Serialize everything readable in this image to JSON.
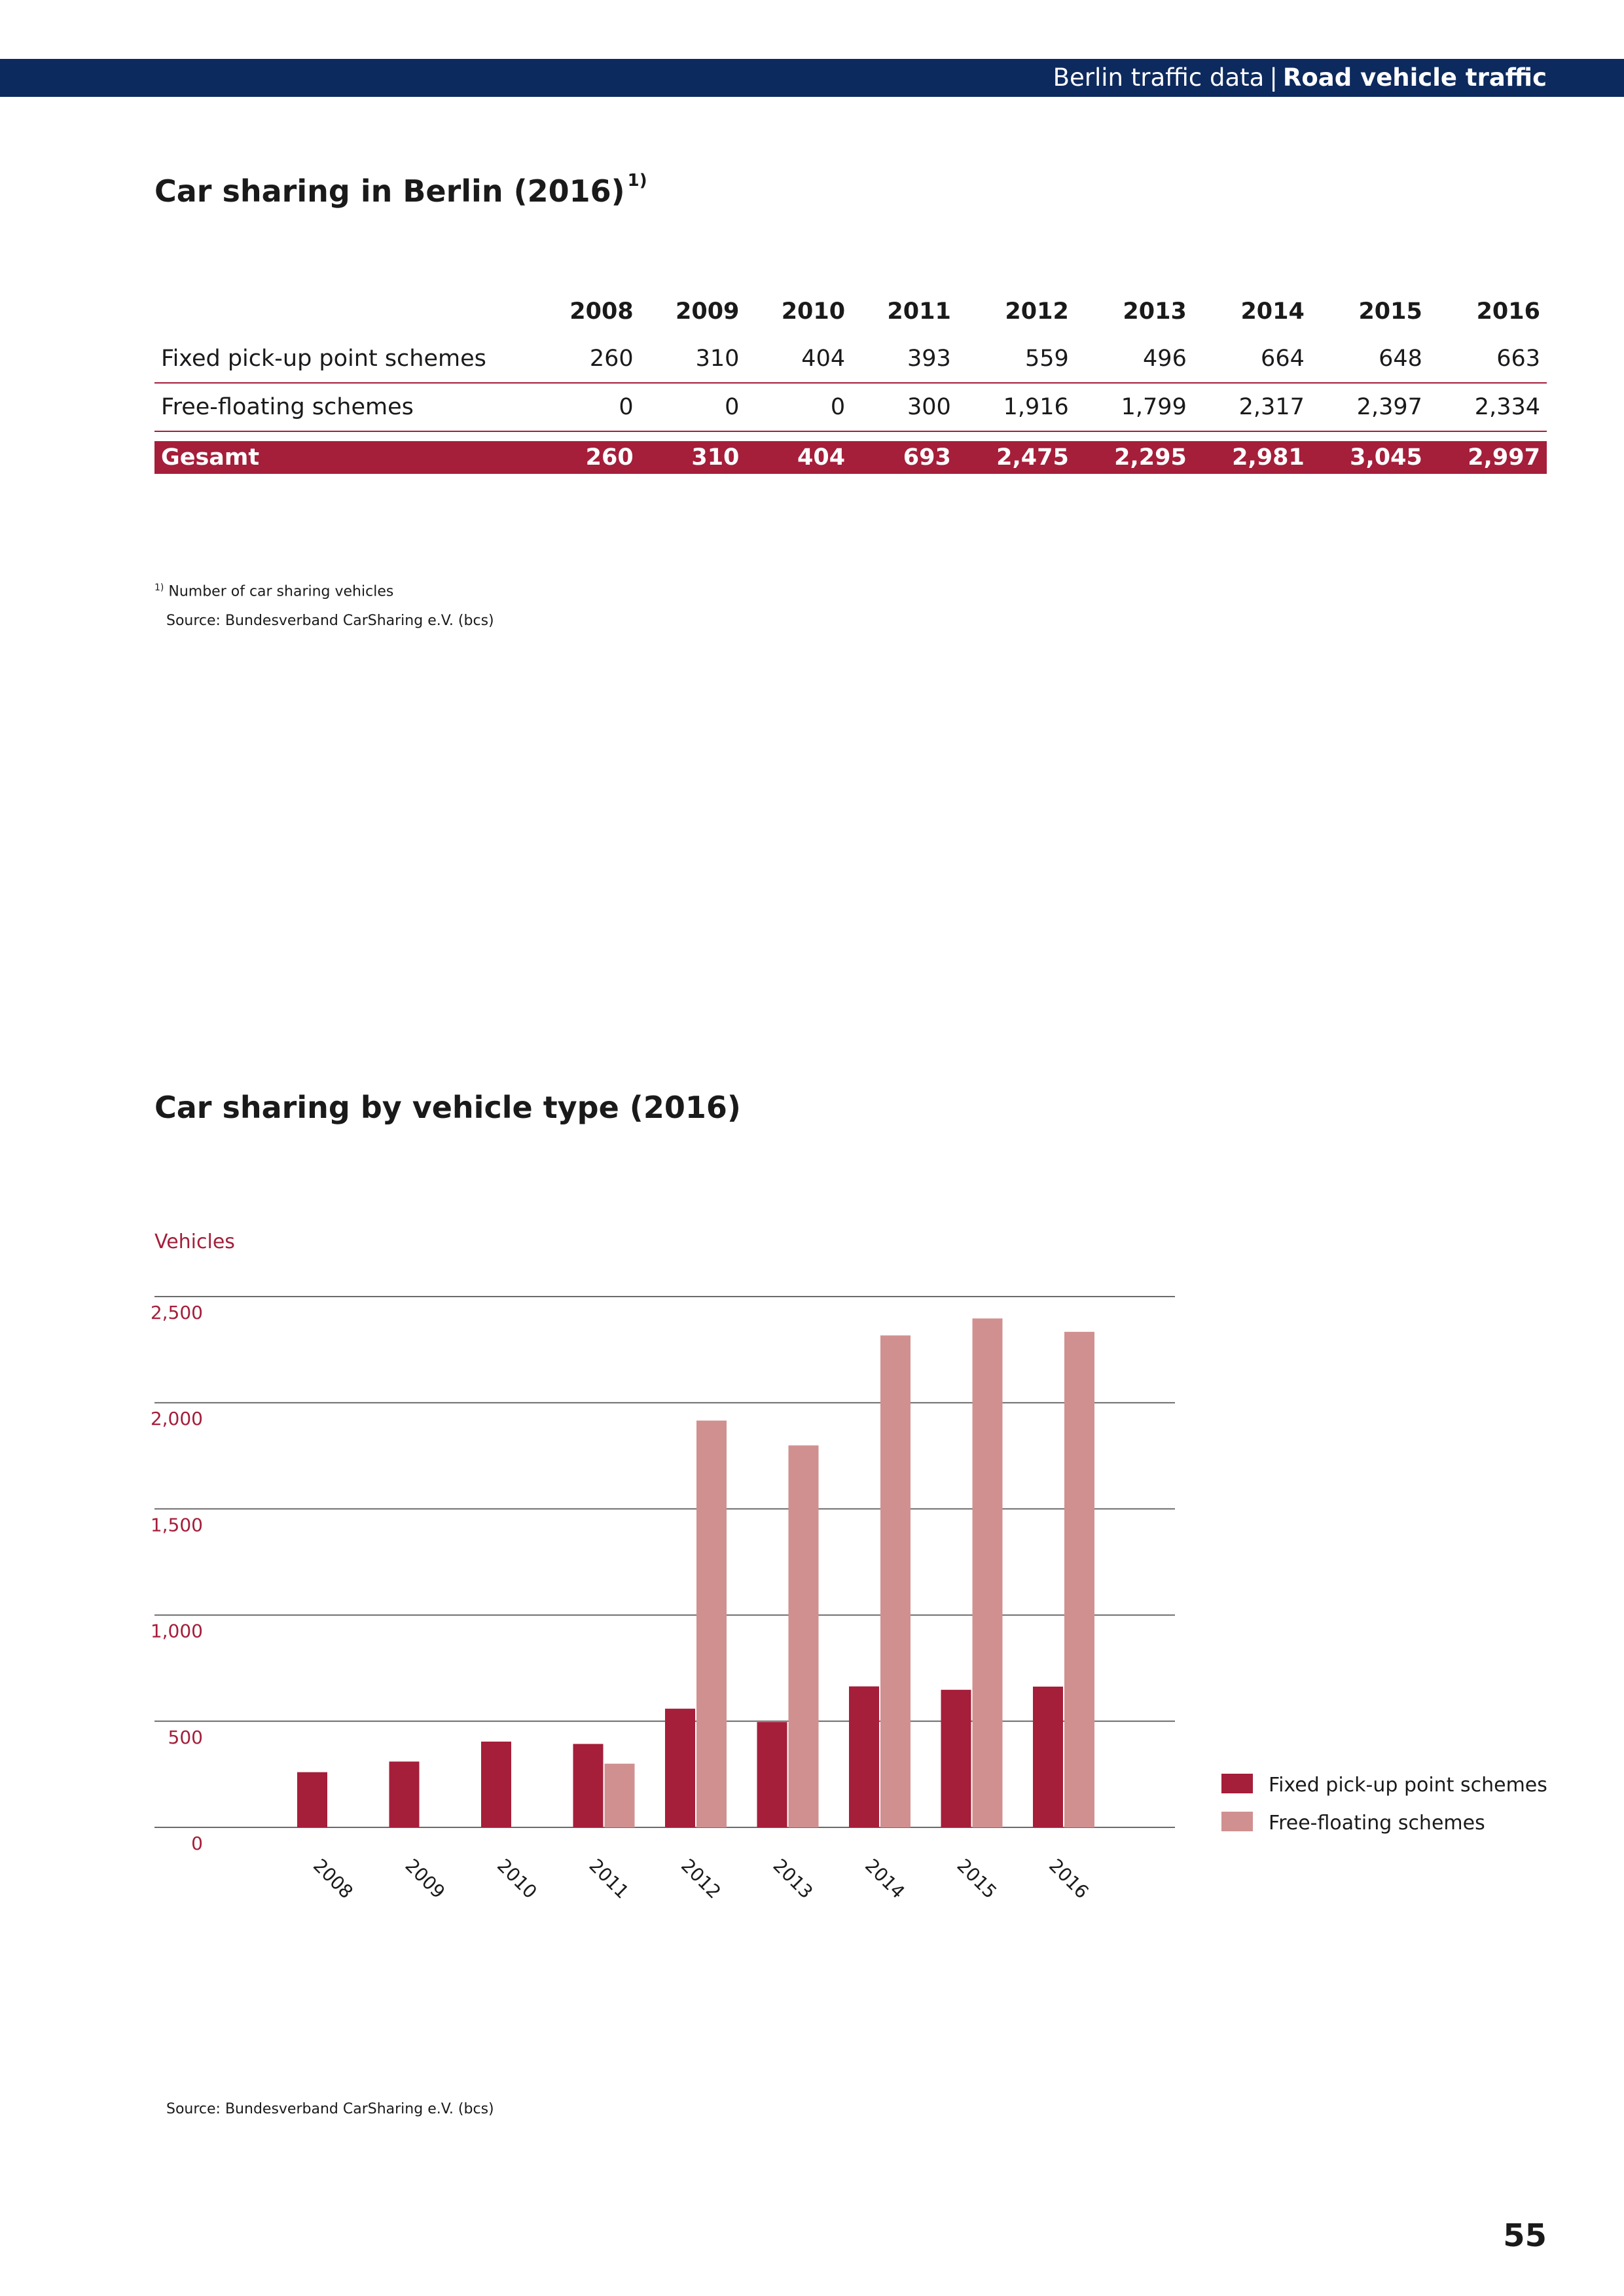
{
  "header": {
    "section": "Berlin traffic data",
    "separator": "|",
    "chapter": "Road vehicle traffic"
  },
  "table_section": {
    "title": "Car sharing in Berlin (2016)",
    "title_footnote_mark": "1)",
    "columns": [
      "2008",
      "2009",
      "2010",
      "2011",
      "2012",
      "2013",
      "2014",
      "2015",
      "2016"
    ],
    "rows": [
      {
        "label": "Fixed pick-up point schemes",
        "values": [
          "260",
          "310",
          "404",
          "393",
          "559",
          "496",
          "664",
          "648",
          "663"
        ]
      },
      {
        "label": "Free-floating schemes",
        "values": [
          "0",
          "0",
          "0",
          "300",
          "1,916",
          "1,799",
          "2,317",
          "2,397",
          "2,334"
        ]
      }
    ],
    "total": {
      "label": "Gesamt",
      "values": [
        "260",
        "310",
        "404",
        "693",
        "2,475",
        "2,295",
        "2,981",
        "3,045",
        "2,997"
      ]
    },
    "footnote_mark": "1)",
    "footnote": "Number of car sharing vehicles",
    "source": "Source: Bundesverband CarSharing e.V. (bcs)"
  },
  "chart_section": {
    "title": "Car sharing by vehicle type (2016)",
    "source": "Source: Bundesverband CarSharing e.V. (bcs)"
  },
  "chart_data": {
    "type": "bar",
    "title": "Car sharing by vehicle type (2016)",
    "ylabel": "Vehicles",
    "xlabel": "",
    "categories": [
      "2008",
      "2009",
      "2010",
      "2011",
      "2012",
      "2013",
      "2014",
      "2015",
      "2016"
    ],
    "series": [
      {
        "name": "Fixed pick-up point schemes",
        "color": "#a51e3a",
        "values": [
          260,
          310,
          404,
          393,
          559,
          496,
          664,
          648,
          663
        ]
      },
      {
        "name": "Free-floating schemes",
        "color": "#d09090",
        "values": [
          0,
          0,
          0,
          300,
          1916,
          1799,
          2317,
          2397,
          2334
        ]
      }
    ],
    "ylim": [
      0,
      2500
    ],
    "yticks": [
      0,
      500,
      1000,
      1500,
      2000,
      2500
    ],
    "ytick_labels": [
      "0",
      "500",
      "1,000",
      "1,500",
      "2,000",
      "2,500"
    ],
    "grid": true,
    "legend_position": "right"
  },
  "page_number": "55"
}
